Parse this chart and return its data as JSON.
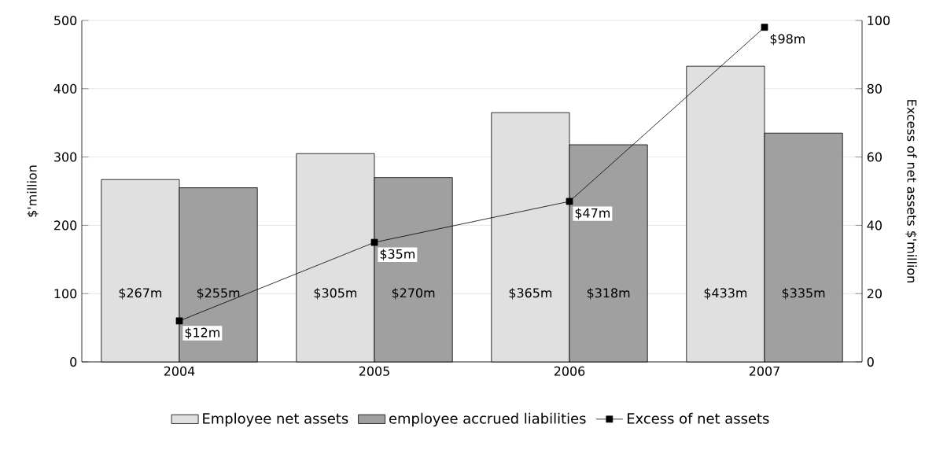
{
  "chart_data": {
    "type": "bar",
    "categories": [
      "2004",
      "2005",
      "2006",
      "2007"
    ],
    "series": [
      {
        "name": "Employee net assets",
        "color": "#e0e0e0",
        "values": [
          267,
          305,
          365,
          433
        ],
        "value_labels": [
          "$267m",
          "$305m",
          "$365m",
          "$433m"
        ]
      },
      {
        "name": "employee accrued liabilities",
        "color": "#a0a0a0",
        "values": [
          255,
          270,
          318,
          335
        ],
        "value_labels": [
          "$255m",
          "$270m",
          "$318m",
          "$335m"
        ]
      },
      {
        "name": "Excess of net assets",
        "type": "line",
        "axis": "y2",
        "color": "#000000",
        "marker": "square",
        "values": [
          12,
          35,
          47,
          98
        ],
        "value_labels": [
          "$12m",
          "$35m",
          "$47m",
          "$98m"
        ]
      }
    ],
    "ylabel": "$'million",
    "y2label": "Excess of net assets $'million",
    "ylim": [
      0,
      500
    ],
    "yticks": [
      0,
      100,
      200,
      300,
      400,
      500
    ],
    "y2lim": [
      0,
      100
    ],
    "y2ticks": [
      0,
      20,
      40,
      60,
      80,
      100
    ],
    "grid": "y",
    "legend": "bottom"
  }
}
